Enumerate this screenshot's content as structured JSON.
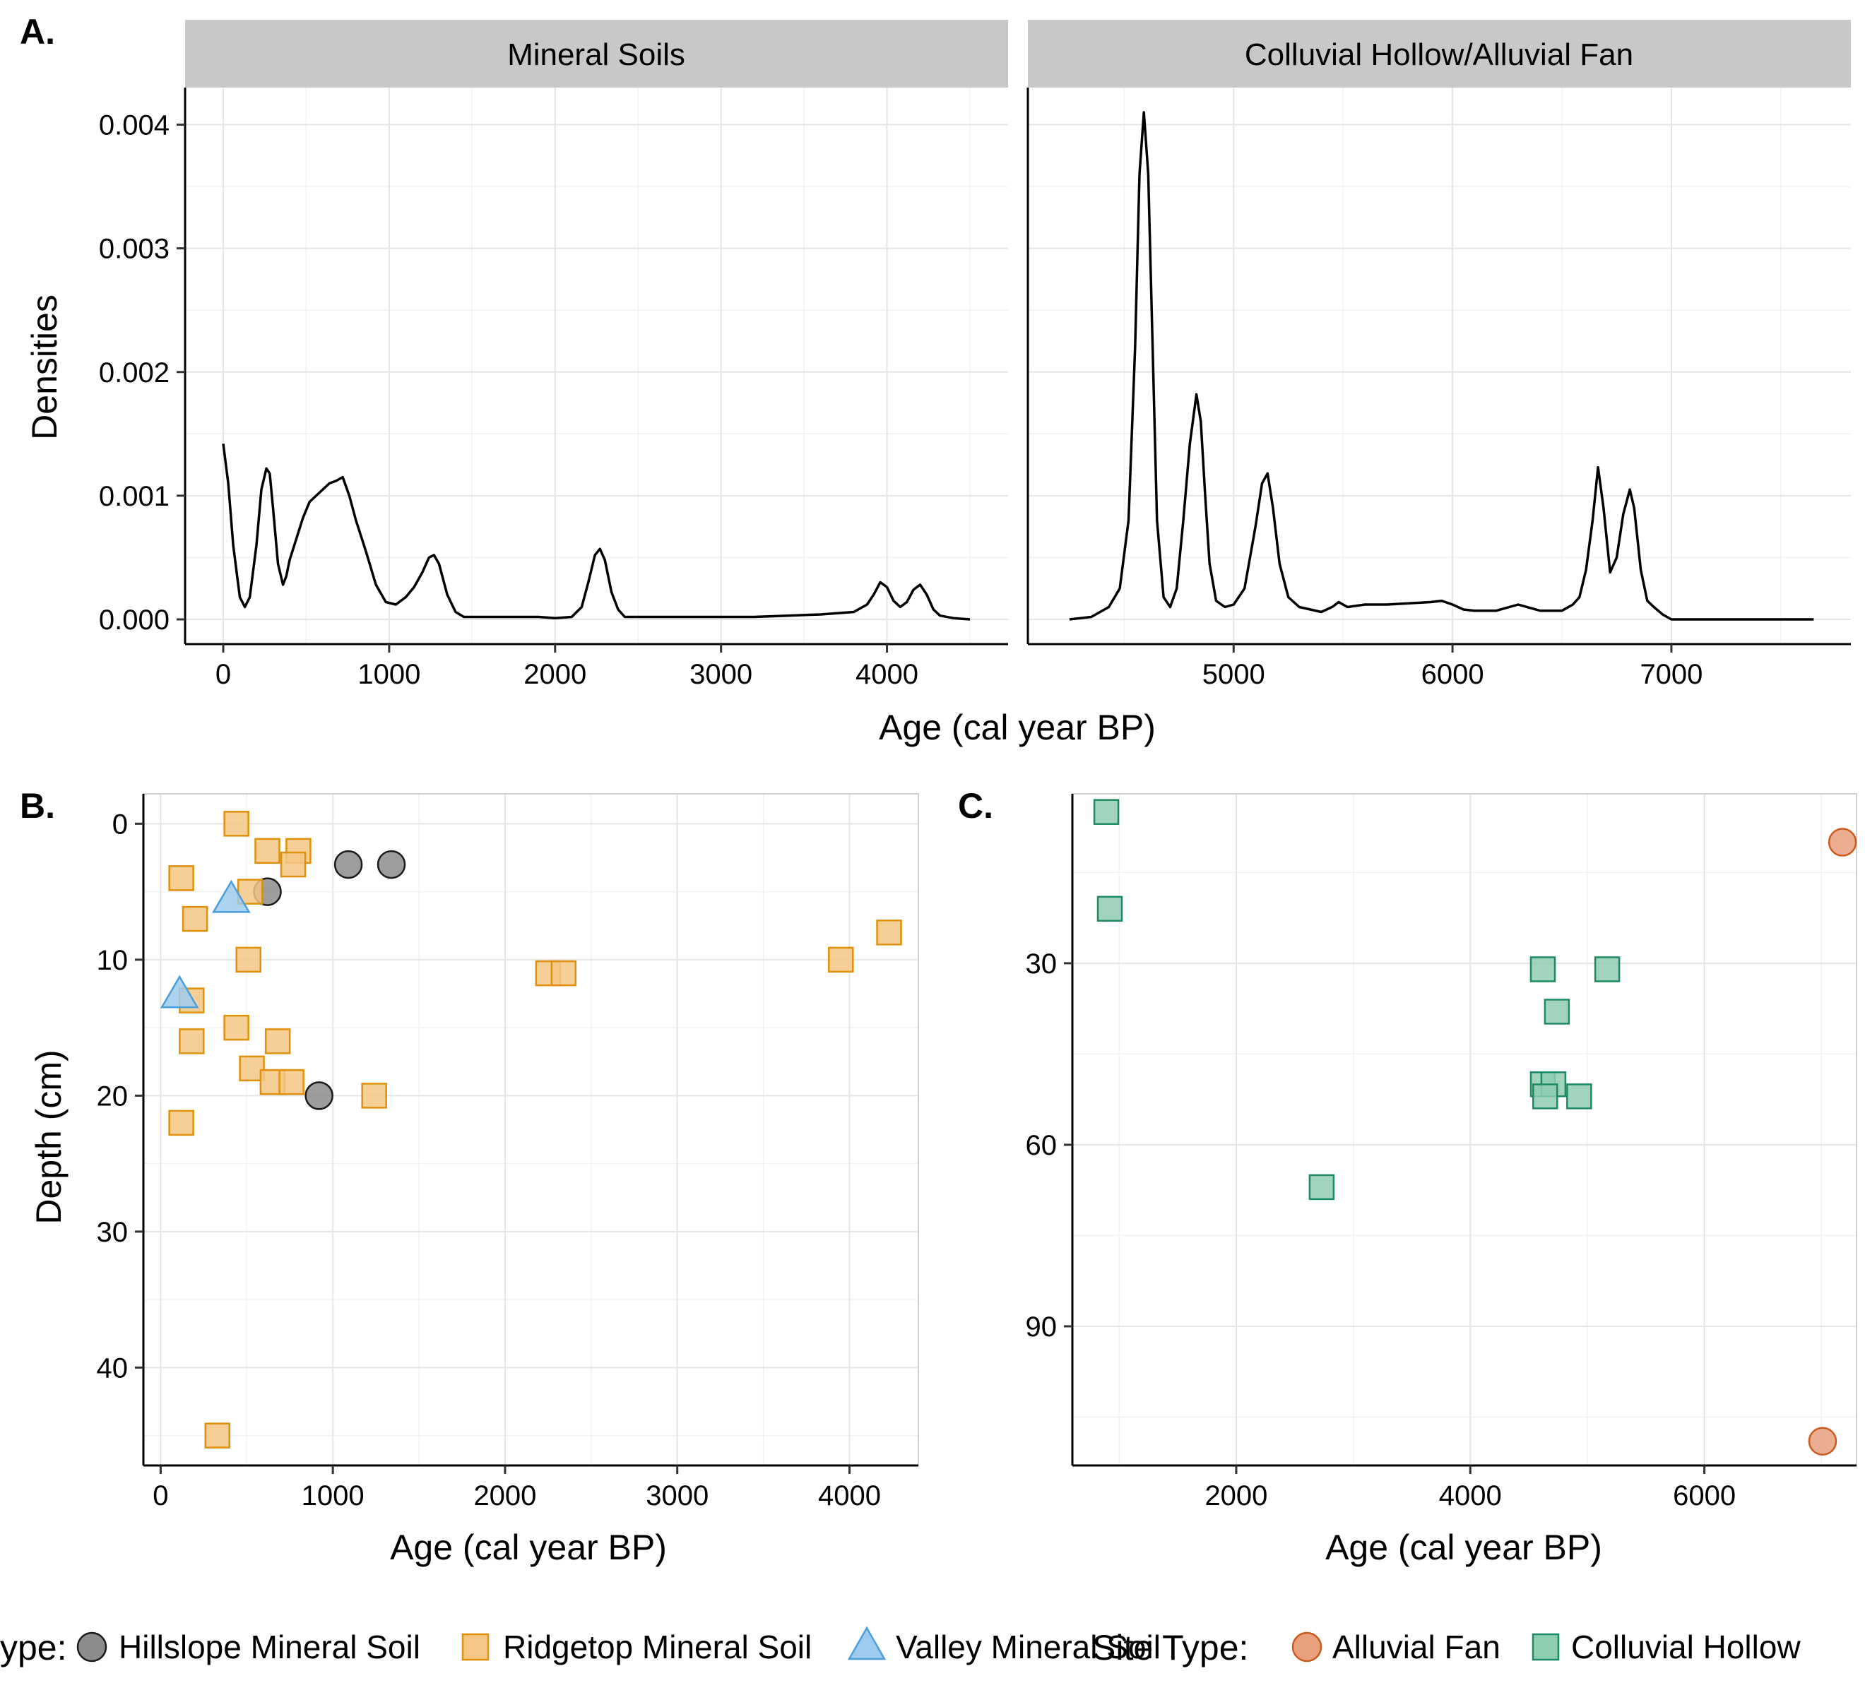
{
  "chart_data": [
    {
      "panel": "A.",
      "type": "line",
      "ylabel": "Densities",
      "xlabel": "Age (cal year BP)",
      "yticks": [
        0,
        0.001,
        0.002,
        0.003,
        0.004
      ],
      "ytick_labels": [
        "0.000",
        "0.001",
        "0.002",
        "0.003",
        "0.004"
      ],
      "ylim": [
        -0.0002,
        0.0043
      ],
      "facets": [
        {
          "strip": "Mineral Soils",
          "xlim": [
            -230,
            4730
          ],
          "xticks": [
            0,
            1000,
            2000,
            3000,
            4000
          ],
          "x": [
            0,
            30,
            60,
            100,
            130,
            160,
            200,
            230,
            260,
            280,
            300,
            330,
            360,
            380,
            400,
            440,
            480,
            520,
            560,
            600,
            640,
            680,
            720,
            760,
            800,
            860,
            920,
            980,
            1040,
            1100,
            1150,
            1200,
            1240,
            1270,
            1300,
            1350,
            1400,
            1450,
            1500,
            1600,
            1700,
            1800,
            1900,
            2000,
            2100,
            2160,
            2200,
            2240,
            2270,
            2300,
            2340,
            2380,
            2420,
            2500,
            2600,
            2800,
            3000,
            3200,
            3400,
            3600,
            3800,
            3880,
            3920,
            3960,
            4000,
            4040,
            4080,
            4120,
            4160,
            4200,
            4240,
            4280,
            4320,
            4400,
            4500
          ],
          "y": [
            0.00142,
            0.0011,
            0.0006,
            0.00018,
            0.0001,
            0.00018,
            0.0006,
            0.00105,
            0.00122,
            0.00118,
            0.0009,
            0.00045,
            0.00028,
            0.00035,
            0.00048,
            0.00065,
            0.00082,
            0.00095,
            0.001,
            0.00105,
            0.0011,
            0.00112,
            0.00115,
            0.001,
            0.0008,
            0.00055,
            0.00028,
            0.00014,
            0.00012,
            0.00018,
            0.00026,
            0.00038,
            0.0005,
            0.00052,
            0.00045,
            0.0002,
            6e-05,
            2e-05,
            2e-05,
            2e-05,
            2e-05,
            2e-05,
            2e-05,
            1e-05,
            2e-05,
            0.0001,
            0.0003,
            0.00052,
            0.00057,
            0.00048,
            0.00022,
            8e-05,
            2e-05,
            2e-05,
            2e-05,
            2e-05,
            2e-05,
            2e-05,
            3e-05,
            4e-05,
            6e-05,
            0.00012,
            0.0002,
            0.0003,
            0.00026,
            0.00015,
            0.0001,
            0.00014,
            0.00024,
            0.00028,
            0.0002,
            8e-05,
            3e-05,
            1e-05,
            0
          ]
        },
        {
          "strip": "Colluvial Hollow/Alluvial Fan",
          "xlim": [
            4060,
            7820
          ],
          "xticks": [
            5000,
            6000,
            7000
          ],
          "x": [
            4250,
            4350,
            4430,
            4480,
            4520,
            4550,
            4570,
            4590,
            4610,
            4630,
            4650,
            4680,
            4710,
            4740,
            4770,
            4800,
            4830,
            4850,
            4870,
            4890,
            4920,
            4960,
            5000,
            5050,
            5100,
            5130,
            5155,
            5180,
            5210,
            5250,
            5300,
            5350,
            5400,
            5450,
            5480,
            5520,
            5600,
            5700,
            5800,
            5900,
            5950,
            6000,
            6050,
            6100,
            6200,
            6300,
            6400,
            6500,
            6550,
            6580,
            6610,
            6640,
            6665,
            6690,
            6720,
            6750,
            6780,
            6810,
            6830,
            6860,
            6890,
            6920,
            6960,
            7000,
            7200,
            7400,
            7650
          ],
          "y": [
            0,
            2e-05,
            0.0001,
            0.00025,
            0.0008,
            0.0022,
            0.0036,
            0.0041,
            0.0036,
            0.0022,
            0.0008,
            0.00018,
            0.0001,
            0.00025,
            0.0008,
            0.00142,
            0.00182,
            0.0016,
            0.001,
            0.00045,
            0.00015,
            0.0001,
            0.00012,
            0.00025,
            0.00075,
            0.0011,
            0.00118,
            0.0009,
            0.00045,
            0.00018,
            0.0001,
            8e-05,
            6e-05,
            0.0001,
            0.00014,
            0.0001,
            0.00012,
            0.00012,
            0.00013,
            0.00014,
            0.00015,
            0.00012,
            8e-05,
            7e-05,
            7e-05,
            0.00012,
            7e-05,
            7e-05,
            0.00012,
            0.00018,
            0.0004,
            0.0008,
            0.00123,
            0.0009,
            0.00038,
            0.0005,
            0.00085,
            0.00105,
            0.0009,
            0.0004,
            0.00015,
            0.0001,
            4e-05,
            0,
            0,
            0,
            0
          ]
        }
      ]
    },
    {
      "panel": "B.",
      "type": "scatter",
      "xlabel": "Age (cal year BP)",
      "ylabel": "Depth (cm)",
      "xlim": [
        -100,
        4400
      ],
      "ylim": [
        -2.2,
        47.2
      ],
      "y_reversed": true,
      "xticks": [
        0,
        1000,
        2000,
        3000,
        4000
      ],
      "yticks": [
        0,
        10,
        20,
        30,
        40
      ],
      "series": [
        {
          "name": "Hillslope Mineral Soil",
          "shape": "circle",
          "fill": "#8c8c8c",
          "stroke": "#1a1a1a",
          "points": [
            [
              620,
              5
            ],
            [
              1090,
              3
            ],
            [
              1340,
              3
            ],
            [
              920,
              20
            ]
          ]
        },
        {
          "name": "Ridgetop Mineral Soil",
          "shape": "square",
          "fill": "#f5c785",
          "stroke": "#e0900a",
          "points": [
            [
              440,
              0
            ],
            [
              620,
              2
            ],
            [
              800,
              2
            ],
            [
              770,
              3
            ],
            [
              120,
              4
            ],
            [
              520,
              5
            ],
            [
              200,
              7
            ],
            [
              510,
              10
            ],
            [
              180,
              13
            ],
            [
              440,
              15
            ],
            [
              180,
              16
            ],
            [
              680,
              16
            ],
            [
              530,
              18
            ],
            [
              650,
              19
            ],
            [
              760,
              19
            ],
            [
              1240,
              20
            ],
            [
              120,
              22
            ],
            [
              330,
              45
            ],
            [
              2250,
              11
            ],
            [
              2340,
              11
            ],
            [
              3950,
              10
            ],
            [
              4230,
              8
            ]
          ]
        },
        {
          "name": "Valley Mineral Soil",
          "shape": "triangle",
          "fill": "#9ecbed",
          "stroke": "#4a9fdc",
          "points": [
            [
              410,
              5.5
            ],
            [
              110,
              12.5
            ]
          ]
        }
      ]
    },
    {
      "panel": "C.",
      "type": "scatter",
      "xlabel": "Age (cal year BP)",
      "ylabel": "",
      "xlim": [
        600,
        7300
      ],
      "ylim": [
        2,
        113
      ],
      "y_reversed": true,
      "xticks": [
        2000,
        4000,
        6000
      ],
      "yticks": [
        30,
        60,
        90
      ],
      "series": [
        {
          "name": "Alluvial Fan",
          "shape": "circle",
          "fill": "#e7a07d",
          "stroke": "#cc5a1f",
          "points": [
            [
              7180,
              10
            ],
            [
              7010,
              109
            ]
          ]
        },
        {
          "name": "Colluvial Hollow",
          "shape": "square",
          "fill": "#8fcdb1",
          "stroke": "#1c8a62",
          "points": [
            [
              890,
              5
            ],
            [
              920,
              21
            ],
            [
              2730,
              67
            ],
            [
              4620,
              31
            ],
            [
              5170,
              31
            ],
            [
              4740,
              38
            ],
            [
              4620,
              50
            ],
            [
              4710,
              50
            ],
            [
              4640,
              52
            ],
            [
              4930,
              52
            ]
          ]
        }
      ]
    }
  ],
  "legend_left": {
    "title": "ype:",
    "items": [
      "Hillslope Mineral Soil",
      "Ridgetop Mineral Soil",
      "Valley Mineral Soil"
    ]
  },
  "legend_right": {
    "title": "Site Type:",
    "items": [
      "Alluvial Fan",
      "Colluvial Hollow"
    ]
  },
  "colors": {
    "hillslope": "#8c8c8c",
    "ridgetop": "#f5c785",
    "valley": "#9ecbed",
    "alluvial": "#e7a07d",
    "colluvial": "#8fcdb1",
    "strip_bg": "#c8c8c8"
  }
}
